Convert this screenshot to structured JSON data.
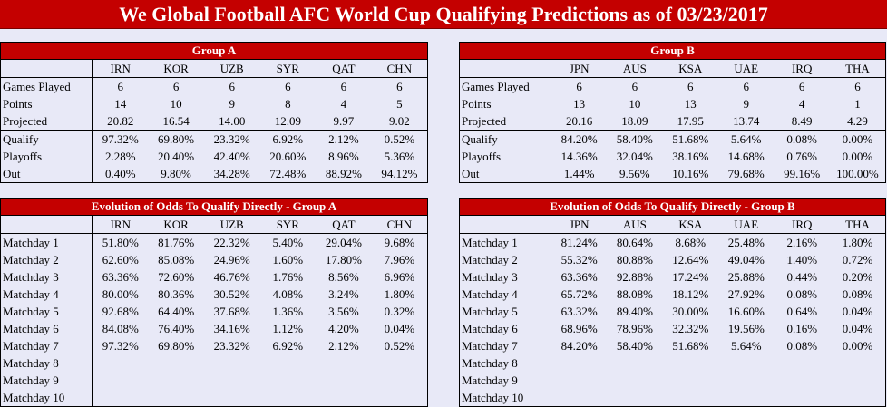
{
  "title": "We Global Football AFC World Cup Qualifying Predictions as of 03/23/2017",
  "group_a": {
    "banner": "Group A",
    "teams": [
      "IRN",
      "KOR",
      "UZB",
      "SYR",
      "QAT",
      "CHN"
    ],
    "rows": [
      {
        "label": "Games Played",
        "values": [
          "6",
          "6",
          "6",
          "6",
          "6",
          "6"
        ]
      },
      {
        "label": "Points",
        "values": [
          "14",
          "10",
          "9",
          "8",
          "4",
          "5"
        ]
      },
      {
        "label": "Projected",
        "values": [
          "20.82",
          "16.54",
          "14.00",
          "12.09",
          "9.97",
          "9.02"
        ]
      },
      {
        "label": "Qualify",
        "values": [
          "97.32%",
          "69.80%",
          "23.32%",
          "6.92%",
          "2.12%",
          "0.52%"
        ]
      },
      {
        "label": "Playoffs",
        "values": [
          "2.28%",
          "20.40%",
          "42.40%",
          "20.60%",
          "8.96%",
          "5.36%"
        ]
      },
      {
        "label": "Out",
        "values": [
          "0.40%",
          "9.80%",
          "34.28%",
          "72.48%",
          "88.92%",
          "94.12%"
        ]
      }
    ]
  },
  "group_b": {
    "banner": "Group B",
    "teams": [
      "JPN",
      "AUS",
      "KSA",
      "UAE",
      "IRQ",
      "THA"
    ],
    "rows": [
      {
        "label": "Games Played",
        "values": [
          "6",
          "6",
          "6",
          "6",
          "6",
          "6"
        ]
      },
      {
        "label": "Points",
        "values": [
          "13",
          "10",
          "13",
          "9",
          "4",
          "1"
        ]
      },
      {
        "label": "Projected",
        "values": [
          "20.16",
          "18.09",
          "17.95",
          "13.74",
          "8.49",
          "4.29"
        ]
      },
      {
        "label": "Qualify",
        "values": [
          "84.20%",
          "58.40%",
          "51.68%",
          "5.64%",
          "0.08%",
          "0.00%"
        ]
      },
      {
        "label": "Playoffs",
        "values": [
          "14.36%",
          "32.04%",
          "38.16%",
          "14.68%",
          "0.76%",
          "0.00%"
        ]
      },
      {
        "label": "Out",
        "values": [
          "1.44%",
          "9.56%",
          "10.16%",
          "79.68%",
          "99.16%",
          "100.00%"
        ]
      }
    ]
  },
  "evolution_a": {
    "banner": "Evolution of Odds To Qualify Directly - Group A",
    "teams": [
      "IRN",
      "KOR",
      "UZB",
      "SYR",
      "QAT",
      "CHN"
    ],
    "rows": [
      {
        "label": "Matchday 1",
        "values": [
          "51.80%",
          "81.76%",
          "22.32%",
          "5.40%",
          "29.04%",
          "9.68%"
        ]
      },
      {
        "label": "Matchday 2",
        "values": [
          "62.60%",
          "85.08%",
          "24.96%",
          "1.60%",
          "17.80%",
          "7.96%"
        ]
      },
      {
        "label": "Matchday 3",
        "values": [
          "63.36%",
          "72.60%",
          "46.76%",
          "1.76%",
          "8.56%",
          "6.96%"
        ]
      },
      {
        "label": "Matchday 4",
        "values": [
          "80.00%",
          "80.36%",
          "30.52%",
          "4.08%",
          "3.24%",
          "1.80%"
        ]
      },
      {
        "label": "Matchday 5",
        "values": [
          "92.68%",
          "64.40%",
          "37.68%",
          "1.36%",
          "3.56%",
          "0.32%"
        ]
      },
      {
        "label": "Matchday 6",
        "values": [
          "84.08%",
          "76.40%",
          "34.16%",
          "1.12%",
          "4.20%",
          "0.04%"
        ]
      },
      {
        "label": "Matchday 7",
        "values": [
          "97.32%",
          "69.80%",
          "23.32%",
          "6.92%",
          "2.12%",
          "0.52%"
        ]
      },
      {
        "label": "Matchday 8",
        "values": [
          "",
          "",
          "",
          "",
          "",
          ""
        ]
      },
      {
        "label": "Matchday 9",
        "values": [
          "",
          "",
          "",
          "",
          "",
          ""
        ]
      },
      {
        "label": "Matchday 10",
        "values": [
          "",
          "",
          "",
          "",
          "",
          ""
        ]
      }
    ]
  },
  "evolution_b": {
    "banner": "Evolution of Odds To Qualify Directly - Group B",
    "teams": [
      "JPN",
      "AUS",
      "KSA",
      "UAE",
      "IRQ",
      "THA"
    ],
    "rows": [
      {
        "label": "Matchday 1",
        "values": [
          "81.24%",
          "80.64%",
          "8.68%",
          "25.48%",
          "2.16%",
          "1.80%"
        ]
      },
      {
        "label": "Matchday 2",
        "values": [
          "55.32%",
          "80.88%",
          "12.64%",
          "49.04%",
          "1.40%",
          "0.72%"
        ]
      },
      {
        "label": "Matchday 3",
        "values": [
          "63.36%",
          "92.88%",
          "17.24%",
          "25.88%",
          "0.44%",
          "0.20%"
        ]
      },
      {
        "label": "Matchday 4",
        "values": [
          "65.72%",
          "88.08%",
          "18.12%",
          "27.92%",
          "0.08%",
          "0.08%"
        ]
      },
      {
        "label": "Matchday 5",
        "values": [
          "63.32%",
          "89.40%",
          "30.00%",
          "16.60%",
          "0.64%",
          "0.04%"
        ]
      },
      {
        "label": "Matchday 6",
        "values": [
          "68.96%",
          "78.96%",
          "32.32%",
          "19.56%",
          "0.16%",
          "0.04%"
        ]
      },
      {
        "label": "Matchday 7",
        "values": [
          "84.20%",
          "58.40%",
          "51.68%",
          "5.64%",
          "0.08%",
          "0.00%"
        ]
      },
      {
        "label": "Matchday 8",
        "values": [
          "",
          "",
          "",
          "",
          "",
          ""
        ]
      },
      {
        "label": "Matchday 9",
        "values": [
          "",
          "",
          "",
          "",
          "",
          ""
        ]
      },
      {
        "label": "Matchday 10",
        "values": [
          "",
          "",
          "",
          "",
          "",
          ""
        ]
      }
    ]
  }
}
